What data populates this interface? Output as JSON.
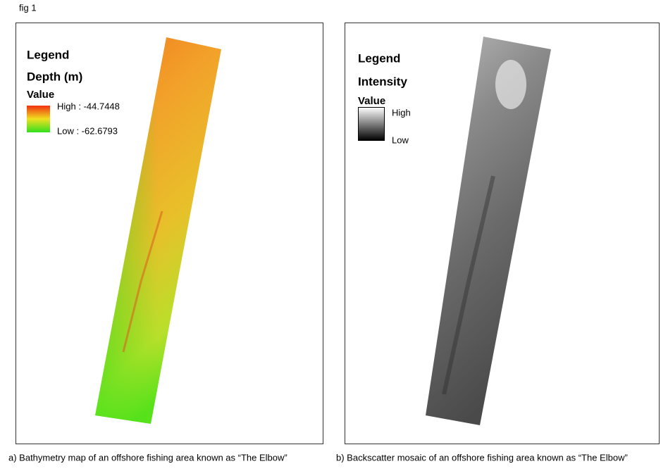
{
  "figure_label": "fig 1",
  "panels": [
    {
      "legend_title": "Legend",
      "layer": "Depth (m)",
      "value_heading": "Value",
      "high": "High : -44.7448",
      "low": "Low : -62.6793",
      "caption": "a) Bathymetry map of an offshore fishing area known  as “The Elbow”"
    },
    {
      "legend_title": "Legend",
      "layer": "Intensity",
      "value_heading": "Value",
      "high": "High",
      "low": "Low",
      "caption": "b) Backscatter mosaic of an offshore fishing area known  as “The Elbow”"
    }
  ]
}
